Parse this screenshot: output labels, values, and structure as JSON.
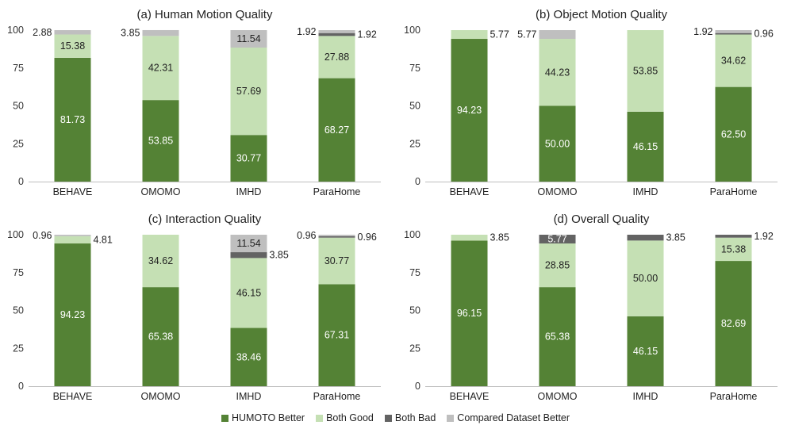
{
  "chart_data": [
    {
      "type": "bar",
      "stacked": true,
      "title": "(a) Human Motion Quality",
      "categories": [
        "BEHAVE",
        "OMOMO",
        "IMHD",
        "ParaHome"
      ],
      "ylim": [
        0,
        100
      ],
      "yticks": [
        "0",
        "25",
        "50",
        "75",
        "100"
      ],
      "series": [
        {
          "name": "HUMOTO Better",
          "values": [
            81.73,
            53.85,
            30.77,
            68.27
          ],
          "labels": [
            "81.73",
            "53.85",
            "30.77",
            "68.27"
          ]
        },
        {
          "name": "Both Good",
          "values": [
            15.38,
            42.31,
            57.69,
            27.88
          ],
          "labels": [
            "15.38",
            "42.31",
            "57.69",
            "27.88"
          ]
        },
        {
          "name": "Both Bad",
          "values": [
            0,
            0,
            0,
            1.92
          ],
          "labels": [
            "",
            "",
            "",
            "1.92"
          ]
        },
        {
          "name": "Compared Dataset Better",
          "values": [
            2.88,
            3.85,
            11.54,
            1.92
          ],
          "labels": [
            "2.88",
            "3.85",
            "11.54",
            "1.92"
          ]
        }
      ]
    },
    {
      "type": "bar",
      "stacked": true,
      "title": "(b) Object Motion Quality",
      "categories": [
        "BEHAVE",
        "OMOMO",
        "IMHD",
        "ParaHome"
      ],
      "ylim": [
        0,
        100
      ],
      "yticks": [
        "0",
        "25",
        "50",
        "75",
        "100"
      ],
      "series": [
        {
          "name": "HUMOTO Better",
          "values": [
            94.23,
            50.0,
            46.15,
            62.5
          ],
          "labels": [
            "94.23",
            "50.00",
            "46.15",
            "62.50"
          ]
        },
        {
          "name": "Both Good",
          "values": [
            5.77,
            44.23,
            53.85,
            34.62
          ],
          "labels": [
            "5.77",
            "44.23",
            "53.85",
            "34.62"
          ]
        },
        {
          "name": "Both Bad",
          "values": [
            0,
            0,
            0,
            0.96
          ],
          "labels": [
            "",
            "",
            "",
            "0.96"
          ]
        },
        {
          "name": "Compared Dataset Better",
          "values": [
            0,
            5.77,
            0,
            1.92
          ],
          "labels": [
            "",
            "5.77",
            "",
            "1.92"
          ]
        }
      ]
    },
    {
      "type": "bar",
      "stacked": true,
      "title": "(c) Interaction Quality",
      "categories": [
        "BEHAVE",
        "OMOMO",
        "IMHD",
        "ParaHome"
      ],
      "ylim": [
        0,
        100
      ],
      "yticks": [
        "0",
        "25",
        "50",
        "75",
        "100"
      ],
      "series": [
        {
          "name": "HUMOTO Better",
          "values": [
            94.23,
            65.38,
            38.46,
            67.31
          ],
          "labels": [
            "94.23",
            "65.38",
            "38.46",
            "67.31"
          ]
        },
        {
          "name": "Both Good",
          "values": [
            4.81,
            34.62,
            46.15,
            30.77
          ],
          "labels": [
            "4.81",
            "34.62",
            "46.15",
            "30.77"
          ]
        },
        {
          "name": "Both Bad",
          "values": [
            0,
            0,
            3.85,
            0.96
          ],
          "labels": [
            "",
            "",
            "3.85",
            "0.96"
          ]
        },
        {
          "name": "Compared Dataset Better",
          "values": [
            0.96,
            0,
            11.54,
            0.96
          ],
          "labels": [
            "0.96",
            "",
            "11.54",
            "0.96"
          ]
        }
      ]
    },
    {
      "type": "bar",
      "stacked": true,
      "title": "(d) Overall Quality",
      "categories": [
        "BEHAVE",
        "OMOMO",
        "IMHD",
        "ParaHome"
      ],
      "ylim": [
        0,
        100
      ],
      "yticks": [
        "0",
        "25",
        "50",
        "75",
        "100"
      ],
      "series": [
        {
          "name": "HUMOTO Better",
          "values": [
            96.15,
            65.38,
            46.15,
            82.69
          ],
          "labels": [
            "96.15",
            "65.38",
            "46.15",
            "82.69"
          ]
        },
        {
          "name": "Both Good",
          "values": [
            3.85,
            28.85,
            50.0,
            15.38
          ],
          "labels": [
            "3.85",
            "28.85",
            "50.00",
            "15.38"
          ]
        },
        {
          "name": "Both Bad",
          "values": [
            0,
            5.77,
            3.85,
            1.92
          ],
          "labels": [
            "",
            "5.77",
            "3.85",
            "1.92"
          ]
        },
        {
          "name": "Compared Dataset Better",
          "values": [
            0,
            0,
            0,
            0
          ],
          "labels": [
            "",
            "",
            "",
            ""
          ]
        }
      ]
    }
  ],
  "legend": [
    {
      "label": "HUMOTO Better",
      "color": "#548235"
    },
    {
      "label": "Both Good",
      "color": "#c5e0b4"
    },
    {
      "label": "Both Bad",
      "color": "#636363"
    },
    {
      "label": "Compared Dataset Better",
      "color": "#bfbfbf"
    }
  ]
}
